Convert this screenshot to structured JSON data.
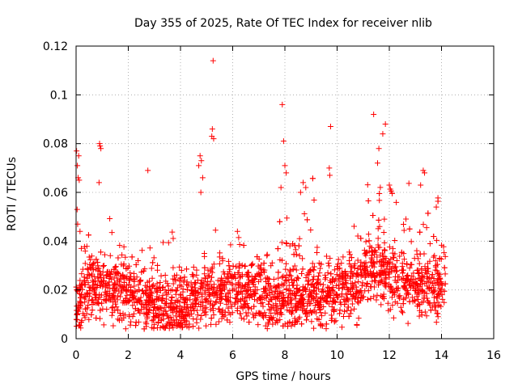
{
  "chart_data": {
    "type": "scatter",
    "title": "Day 355 of 2025, Rate Of TEC Index for receiver nlib",
    "xlabel": "GPS time / hours",
    "ylabel": "ROTI / TECUs",
    "xlim": [
      0,
      16
    ],
    "ylim": [
      0,
      0.12
    ],
    "x_ticks": [
      "0",
      "2",
      "4",
      "6",
      "8",
      "10",
      "12",
      "14",
      "16"
    ],
    "y_ticks": [
      "0",
      "0.02",
      "0.04",
      "0.06",
      "0.08",
      "0.1",
      "0.12"
    ],
    "grid": true,
    "marker": "+",
    "series": [
      {
        "name": "ROTI",
        "color": "#ff0000",
        "x_range": [
          0,
          14.15
        ],
        "points": [
          [
            0.02,
            0.077
          ],
          [
            0.05,
            0.071
          ],
          [
            0.08,
            0.066
          ],
          [
            0.1,
            0.075
          ],
          [
            0.12,
            0.065
          ],
          [
            0.04,
            0.053
          ],
          [
            0.06,
            0.047
          ],
          [
            0.15,
            0.044
          ],
          [
            0.2,
            0.037
          ],
          [
            0.9,
            0.08
          ],
          [
            0.92,
            0.079
          ],
          [
            0.95,
            0.078
          ],
          [
            0.88,
            0.064
          ],
          [
            2.75,
            0.069
          ],
          [
            4.75,
            0.075
          ],
          [
            4.8,
            0.073
          ],
          [
            4.7,
            0.071
          ],
          [
            4.85,
            0.066
          ],
          [
            4.78,
            0.06
          ],
          [
            5.25,
            0.114
          ],
          [
            5.22,
            0.086
          ],
          [
            5.2,
            0.083
          ],
          [
            5.27,
            0.082
          ],
          [
            7.9,
            0.096
          ],
          [
            7.95,
            0.081
          ],
          [
            8.0,
            0.071
          ],
          [
            8.05,
            0.068
          ],
          [
            7.85,
            0.062
          ],
          [
            8.7,
            0.064
          ],
          [
            8.8,
            0.062
          ],
          [
            8.6,
            0.06
          ],
          [
            9.75,
            0.087
          ],
          [
            9.7,
            0.07
          ],
          [
            9.72,
            0.067
          ],
          [
            11.4,
            0.092
          ],
          [
            11.85,
            0.088
          ],
          [
            11.75,
            0.084
          ],
          [
            11.6,
            0.078
          ],
          [
            11.55,
            0.072
          ],
          [
            12.0,
            0.063
          ],
          [
            13.3,
            0.069
          ],
          [
            13.35,
            0.068
          ],
          [
            13.2,
            0.063
          ],
          [
            13.8,
            0.054
          ]
        ]
      }
    ]
  }
}
